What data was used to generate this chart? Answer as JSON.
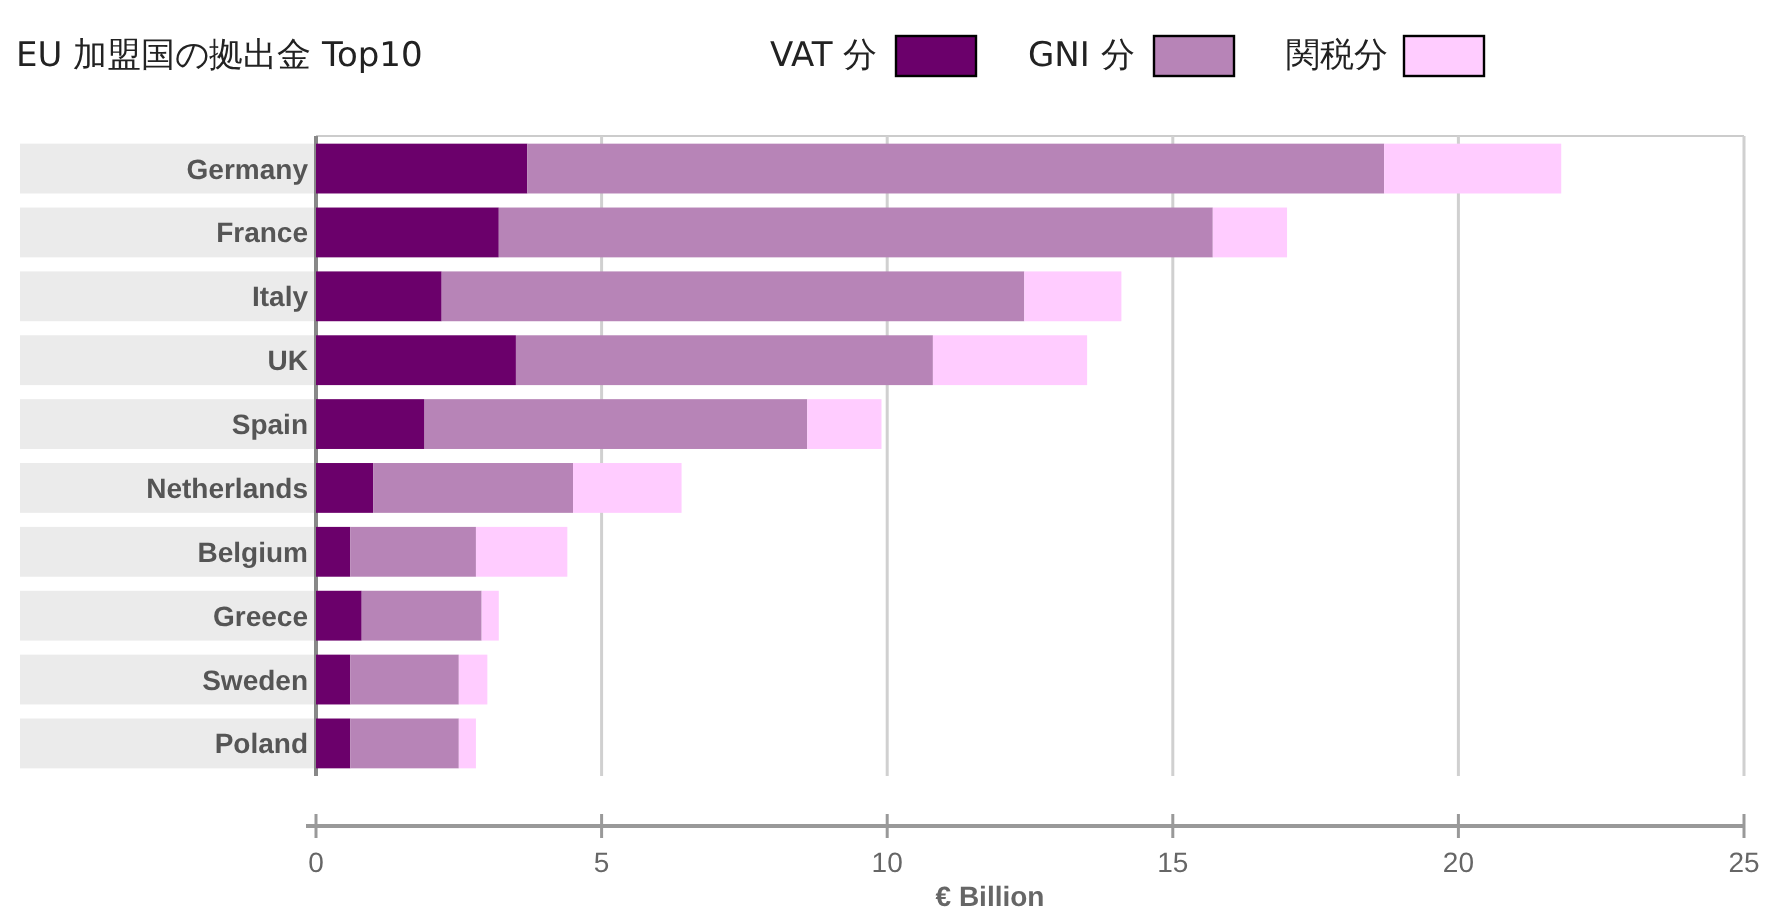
{
  "chart_data": {
    "type": "bar",
    "orientation": "horizontal",
    "stacked": true,
    "title": "EU 加盟国の拠出金 Top10",
    "xlabel": "€ Billion",
    "categories": [
      "Germany",
      "France",
      "Italy",
      "UK",
      "Spain",
      "Netherlands",
      "Belgium",
      "Greece",
      "Sweden",
      "Poland"
    ],
    "series": [
      {
        "name": "VAT 分",
        "color": "#6b006b",
        "values": [
          3.7,
          3.2,
          2.2,
          3.5,
          1.9,
          1.0,
          0.6,
          0.8,
          0.6,
          0.6
        ]
      },
      {
        "name": "GNI 分",
        "color": "#b784b7",
        "values": [
          15.0,
          12.5,
          10.2,
          7.3,
          6.7,
          3.5,
          2.2,
          2.1,
          1.9,
          1.9
        ]
      },
      {
        "name": "関税分",
        "color": "#ffccff",
        "values": [
          3.1,
          1.3,
          1.7,
          2.7,
          1.3,
          1.9,
          1.6,
          0.3,
          0.5,
          0.3
        ]
      }
    ],
    "xlim": [
      0,
      25
    ],
    "xticks": [
      0,
      5,
      10,
      15,
      20,
      25
    ],
    "grid": "x",
    "legend": "top right"
  }
}
